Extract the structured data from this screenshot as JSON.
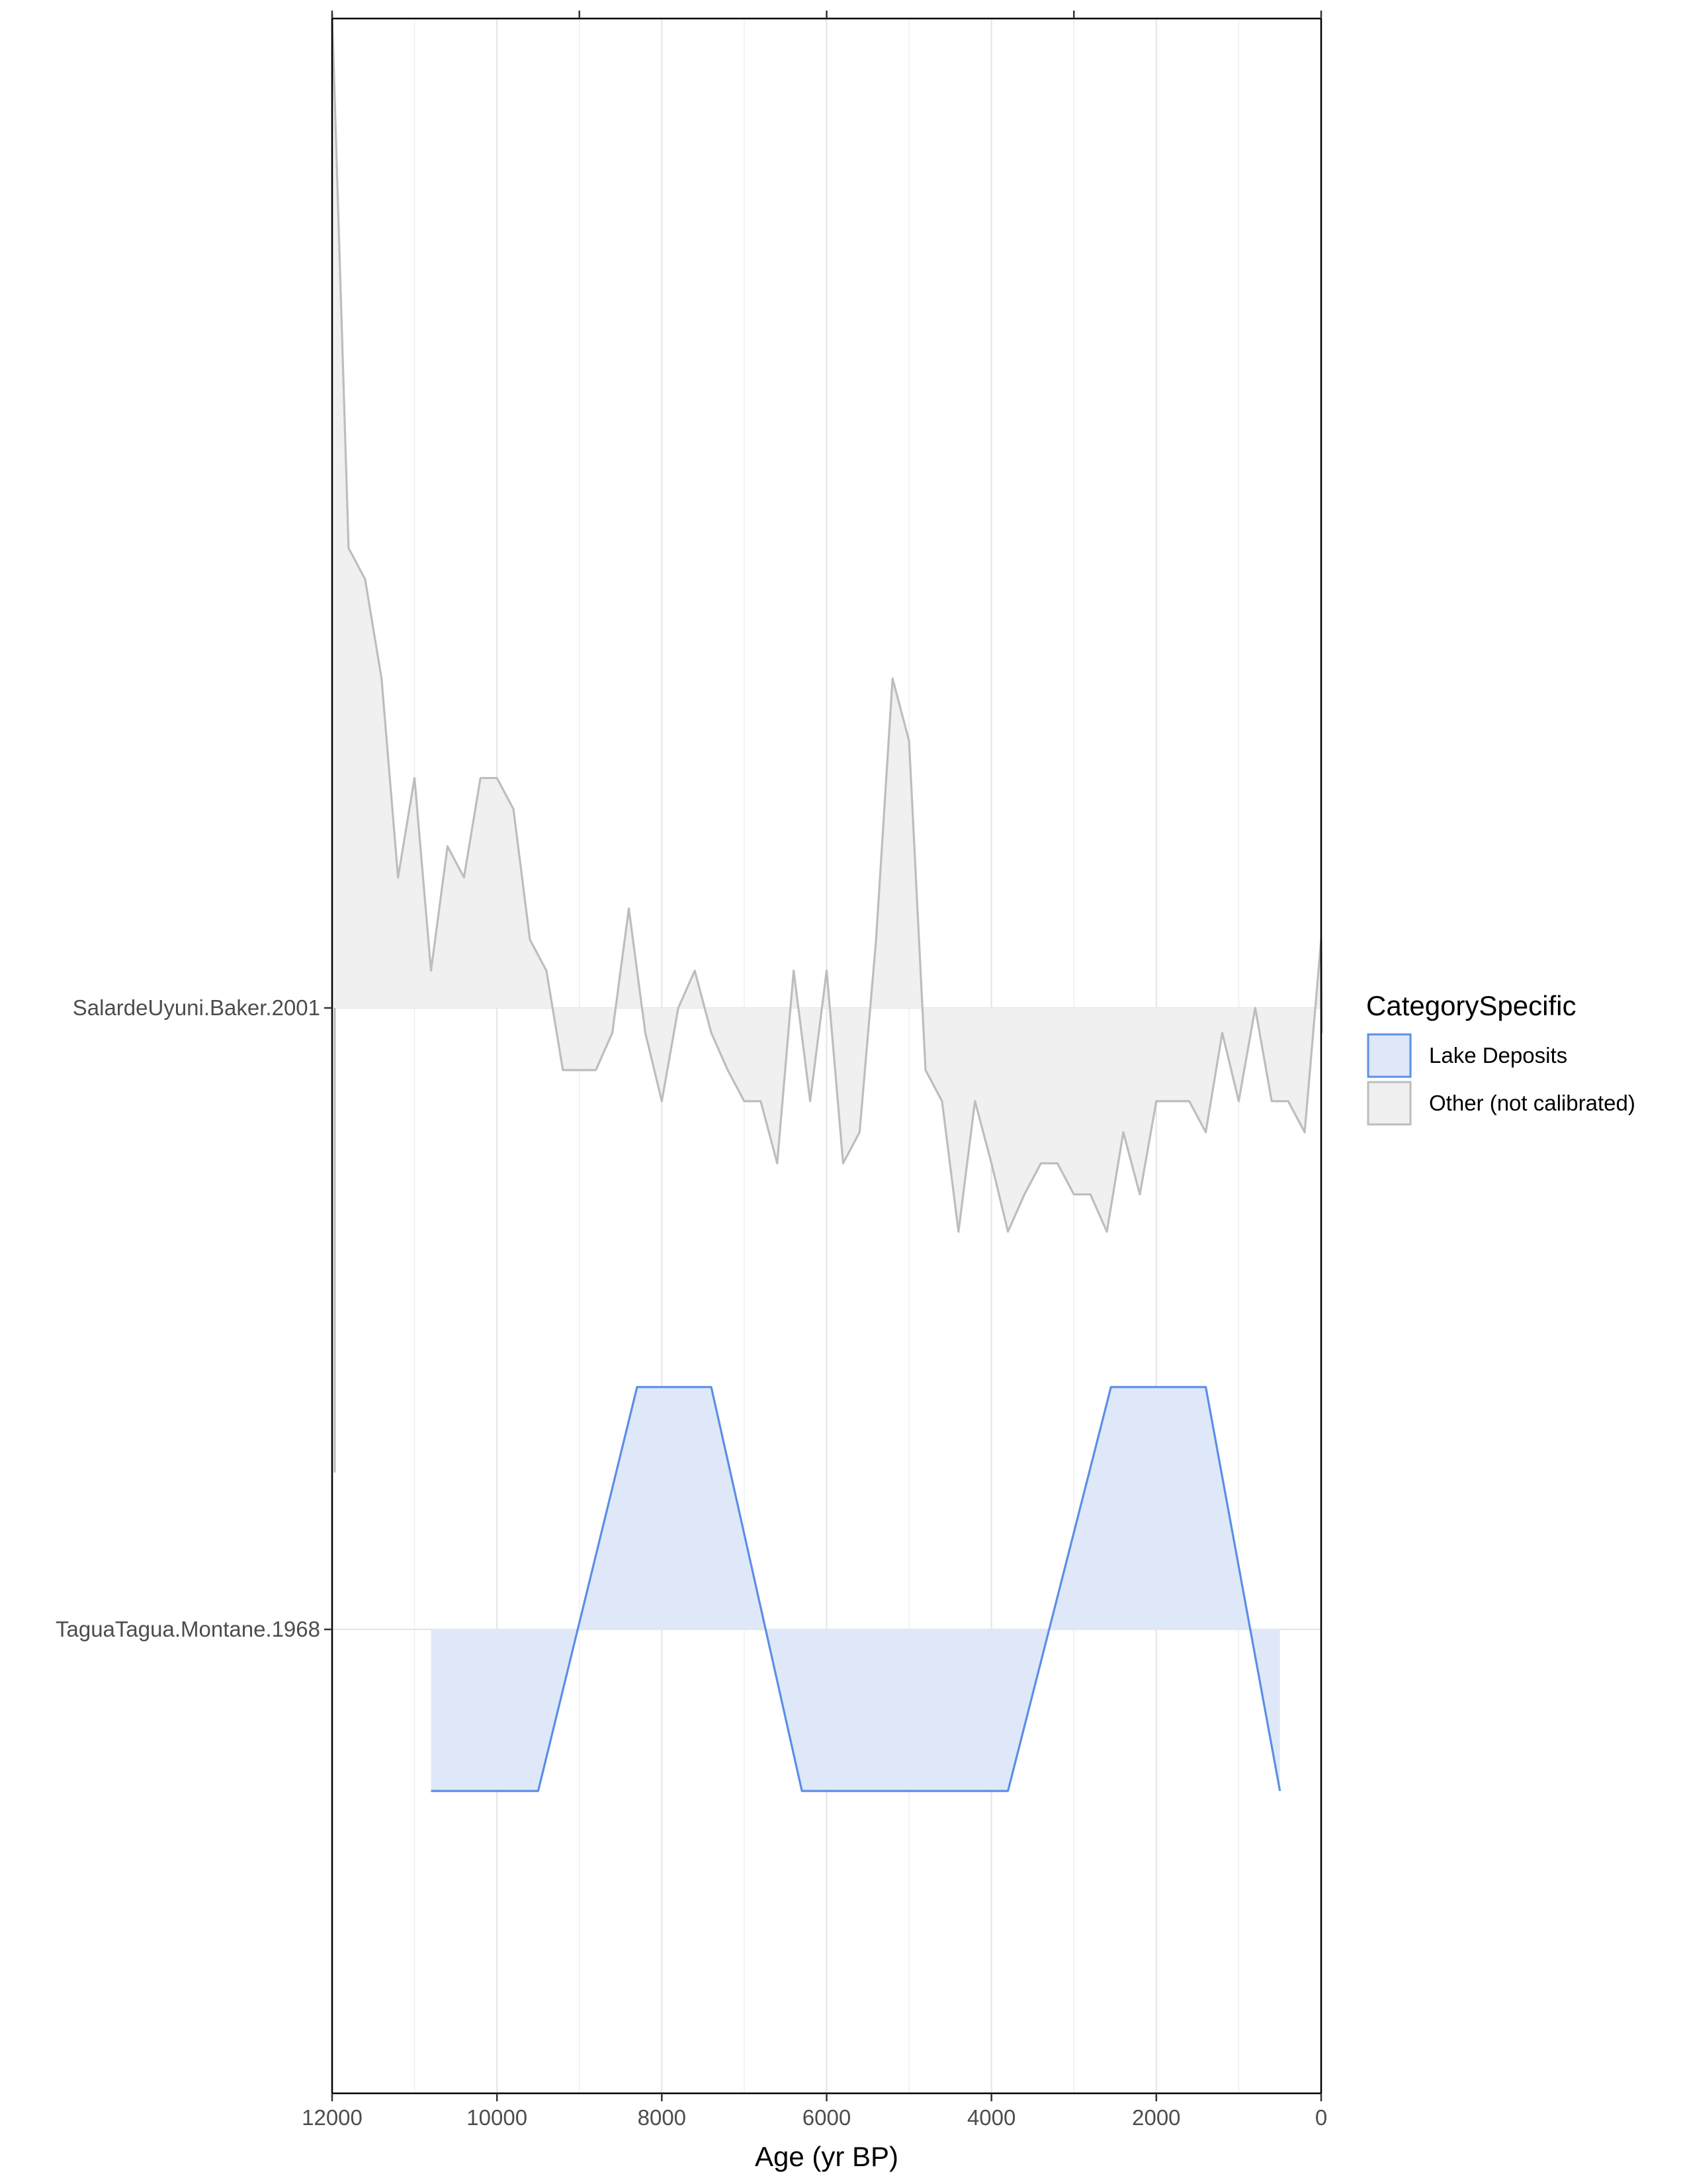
{
  "chart_data": {
    "type": "area",
    "xlabel": "Age (yr BP)",
    "x_reversed": true,
    "xlim": [
      0,
      12000
    ],
    "x_ticks": [
      12000,
      10000,
      8000,
      6000,
      4000,
      2000,
      0
    ],
    "x_tick_labels": [
      "12000",
      "10000",
      "8000",
      "6000",
      "4000",
      "2000",
      "0"
    ],
    "minor_gridlines_every": 1000,
    "grid": "vertical only",
    "legend": {
      "title": "CategorySpecific",
      "placement": "right",
      "entries": [
        {
          "label": "Lake Deposits",
          "fill": "#dfe8f8",
          "stroke": "#5b8ee6"
        },
        {
          "label": "Other (not calibrated)",
          "fill": "#f0f0f0",
          "stroke": "#bdbdbd"
        }
      ]
    },
    "rows": [
      {
        "label": "SalardeUyuni.Baker.2001",
        "category": "Other (not calibrated)",
        "relative_scale": "row offset in units of row spacing (positive = up)",
        "points": [
          [
            12000,
            1.6
          ],
          [
            11800,
            0.74
          ],
          [
            11600,
            0.69
          ],
          [
            11400,
            0.53
          ],
          [
            11200,
            0.21
          ],
          [
            11000,
            0.37
          ],
          [
            10800,
            0.06
          ],
          [
            10600,
            0.26
          ],
          [
            10400,
            0.21
          ],
          [
            10200,
            0.37
          ],
          [
            10000,
            0.37
          ],
          [
            9800,
            0.32
          ],
          [
            9600,
            0.11
          ],
          [
            9400,
            0.06
          ],
          [
            9200,
            -0.1
          ],
          [
            9000,
            -0.1
          ],
          [
            8800,
            -0.1
          ],
          [
            8600,
            -0.04
          ],
          [
            8400,
            0.16
          ],
          [
            8200,
            -0.04
          ],
          [
            8000,
            -0.15
          ],
          [
            7800,
            0.0
          ],
          [
            7600,
            0.06
          ],
          [
            7400,
            -0.04
          ],
          [
            7200,
            -0.1
          ],
          [
            7000,
            -0.15
          ],
          [
            6800,
            -0.15
          ],
          [
            6600,
            -0.25
          ],
          [
            6400,
            0.06
          ],
          [
            6200,
            -0.15
          ],
          [
            6000,
            0.06
          ],
          [
            5800,
            -0.25
          ],
          [
            5600,
            -0.2
          ],
          [
            5400,
            0.11
          ],
          [
            5200,
            0.53
          ],
          [
            5000,
            0.43
          ],
          [
            4800,
            -0.1
          ],
          [
            4600,
            -0.15
          ],
          [
            4400,
            -0.36
          ],
          [
            4200,
            -0.15
          ],
          [
            4000,
            -0.25
          ],
          [
            3800,
            -0.36
          ],
          [
            3600,
            -0.3
          ],
          [
            3400,
            -0.25
          ],
          [
            3200,
            -0.25
          ],
          [
            3000,
            -0.3
          ],
          [
            2800,
            -0.3
          ],
          [
            2600,
            -0.36
          ],
          [
            2400,
            -0.2
          ],
          [
            2200,
            -0.3
          ],
          [
            2000,
            -0.15
          ],
          [
            1800,
            -0.15
          ],
          [
            1600,
            -0.15
          ],
          [
            1400,
            -0.2
          ],
          [
            1200,
            -0.04
          ],
          [
            1000,
            -0.15
          ],
          [
            800,
            0.0
          ],
          [
            600,
            -0.15
          ],
          [
            400,
            -0.15
          ],
          [
            200,
            -0.2
          ],
          [
            0,
            0.11
          ],
          [
            -200,
            -0.04
          ]
        ]
      },
      {
        "label": "TaguaTagua.Montane.1968",
        "category": "Lake Deposits",
        "relative_scale": "row offset in units of row spacing (positive = up)",
        "points": [
          [
            10800,
            -0.26
          ],
          [
            9500,
            -0.26
          ],
          [
            8300,
            0.39
          ],
          [
            7400,
            0.39
          ],
          [
            6300,
            -0.26
          ],
          [
            3800,
            -0.26
          ],
          [
            2550,
            0.39
          ],
          [
            1400,
            0.39
          ],
          [
            500,
            -0.26
          ]
        ]
      }
    ]
  }
}
